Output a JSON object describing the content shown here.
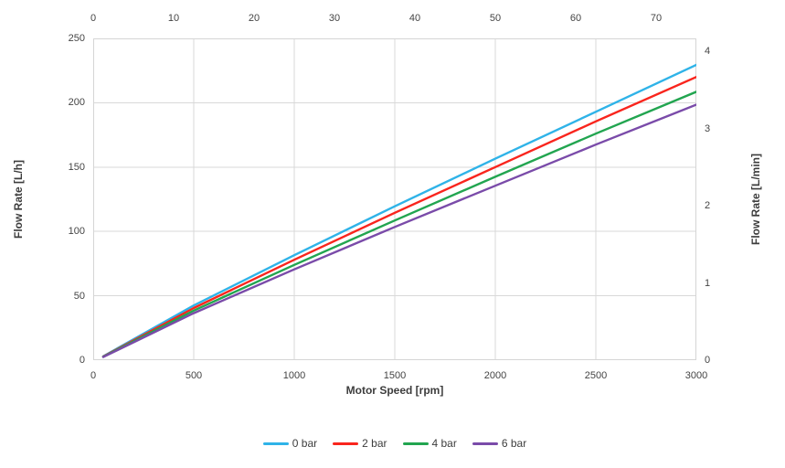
{
  "chart_data": {
    "type": "line",
    "title": "",
    "axes": {
      "bottom": {
        "label": "Motor Speed [rpm]",
        "min": 0,
        "max": 3000,
        "ticks": [
          0,
          500,
          1000,
          1500,
          2000,
          2500,
          3000
        ]
      },
      "top": {
        "label": "",
        "min": 0,
        "max": 75,
        "ticks": [
          0,
          10,
          20,
          30,
          40,
          50,
          60,
          70
        ]
      },
      "left": {
        "label": "Flow Rate [L/h]",
        "min": 0,
        "max": 250,
        "ticks": [
          0,
          50,
          100,
          150,
          200,
          250
        ]
      },
      "right": {
        "label": "Flow Rate [L/min]",
        "min": 0,
        "max": 4.1667,
        "ticks": [
          0,
          1,
          2,
          3,
          4
        ]
      }
    },
    "grid": {
      "show": true,
      "color": "#D9D9D9",
      "border_color": "#D5D5D5"
    },
    "legend": {
      "position": "bottom-center"
    },
    "series": [
      {
        "name": "0 bar",
        "color": "#2FB3E8",
        "x": [
          50,
          500,
          1000,
          1500,
          2000,
          2500,
          3000
        ],
        "values": [
          3.0,
          42.5,
          81.5,
          119.5,
          156.5,
          193.0,
          229.5
        ]
      },
      {
        "name": "2 bar",
        "color": "#F9251D",
        "x": [
          50,
          500,
          1000,
          1500,
          2000,
          2500,
          3000
        ],
        "values": [
          2.8,
          40.5,
          78.0,
          114.5,
          150.0,
          185.5,
          220.0
        ]
      },
      {
        "name": "4 bar",
        "color": "#22A550",
        "x": [
          50,
          500,
          1000,
          1500,
          2000,
          2500,
          3000
        ],
        "values": [
          2.6,
          38.5,
          74.0,
          108.5,
          142.5,
          176.0,
          208.5
        ]
      },
      {
        "name": "6 bar",
        "color": "#7A4BA9",
        "x": [
          50,
          500,
          1000,
          1500,
          2000,
          2500,
          3000
        ],
        "values": [
          2.4,
          36.5,
          70.5,
          103.5,
          135.5,
          167.5,
          198.5
        ]
      }
    ]
  }
}
